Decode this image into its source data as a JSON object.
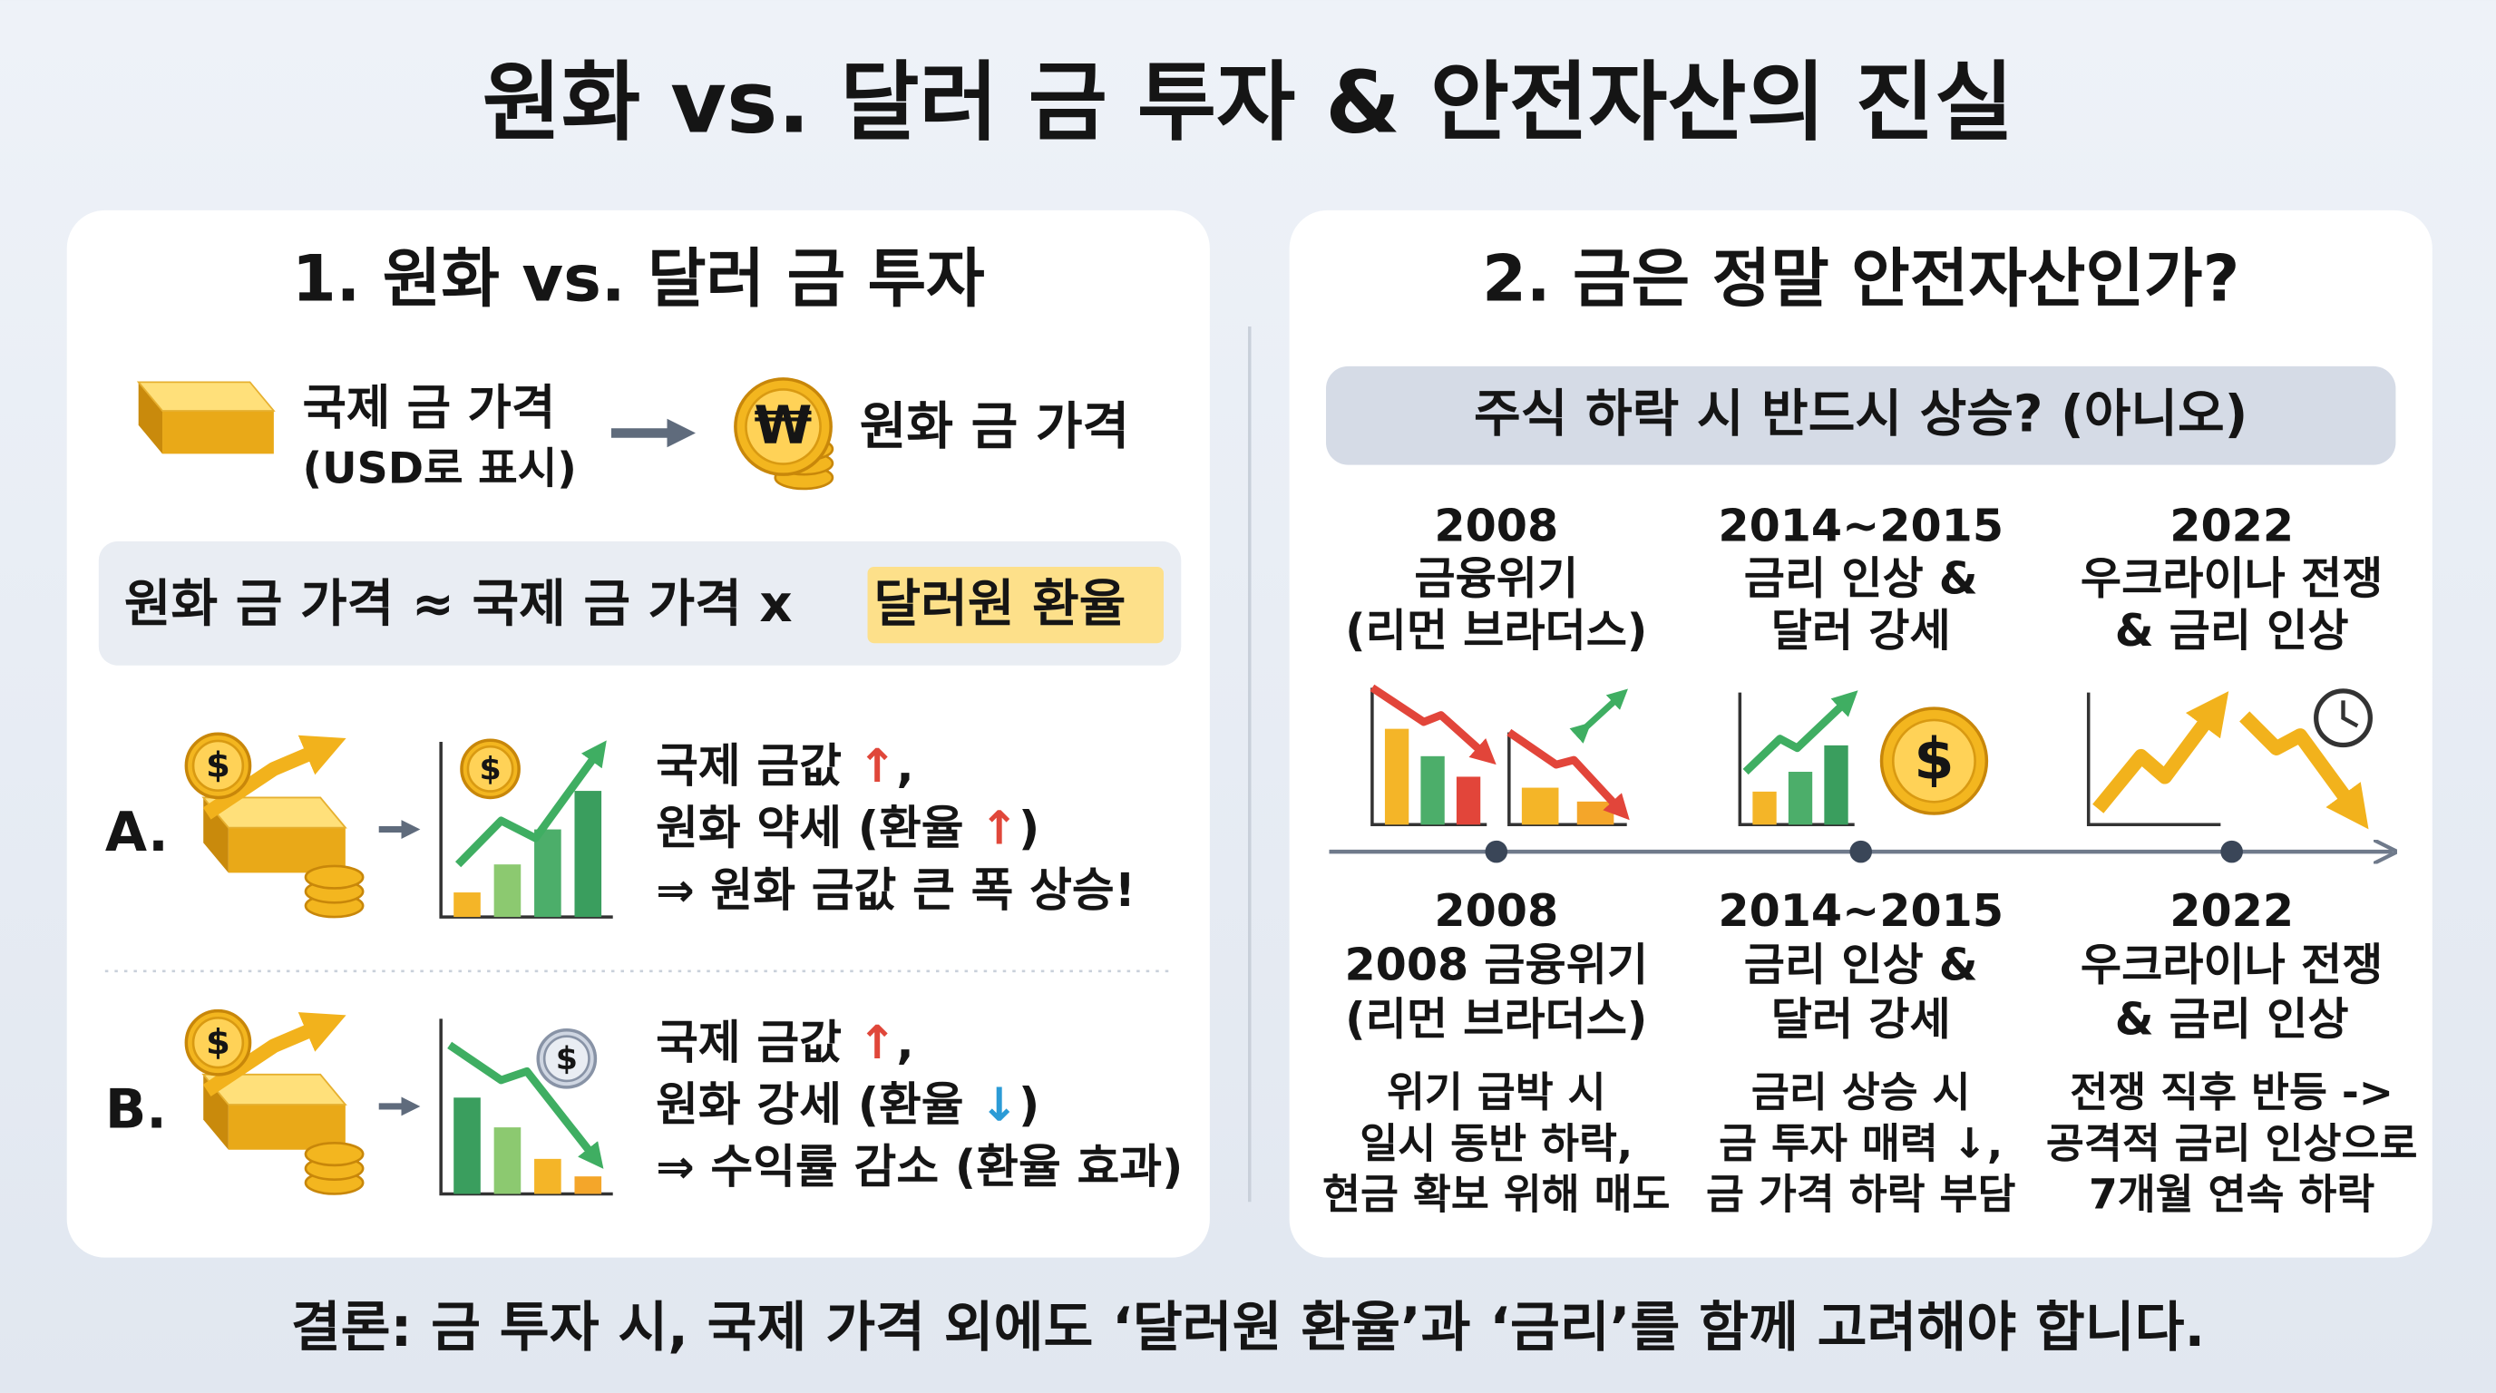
{
  "title": "원화 vs. 달러 금 투자 & 안전자산의 진실",
  "left": {
    "heading": "1. 원화 vs. 달러 금 투자",
    "flow": {
      "from": [
        "국제 금 가격",
        "(USD로 표시)"
      ],
      "to": "원화 금 가격"
    },
    "formula": {
      "text": "원화 금 가격 ≈ 국제 금 가격 x ",
      "highlight": "달러원 환율"
    },
    "cases": [
      {
        "letter": "A.",
        "lines": [
          [
            "국제 금값 ",
            "↑",
            ","
          ],
          [
            "원화 약세 (환율 ",
            "↑",
            ")"
          ],
          [
            "⇒ 원화 금값 큰 폭 상승!"
          ]
        ]
      },
      {
        "letter": "B.",
        "lines": [
          [
            "국제 금값 ",
            "↑",
            ","
          ],
          [
            "원화 강세 (환율 ",
            "↓",
            ")"
          ],
          [
            "⇒ 수익률 감소 (환율 효과)"
          ]
        ]
      }
    ]
  },
  "right": {
    "heading": "2. 금은 정말 안전자산인가?",
    "question": "주식 하락 시 반드시 상승? (아니오)",
    "events": [
      {
        "top": [
          "2008",
          "금융위기",
          "(리먼 브라더스)"
        ],
        "bottom": [
          "2008",
          "2008 금융위기",
          "(리먼 브라더스)"
        ],
        "description": [
          "위기 급박 시",
          "일시 동반 하락,",
          "현금 확보 위해 매도"
        ]
      },
      {
        "top": [
          "2014~2015",
          "금리 인상 &",
          "달러 강세"
        ],
        "bottom": [
          "2014~2015",
          "금리 인상 &",
          "달러 강세"
        ],
        "description": [
          "금리 상승 시",
          "금 투자 매력 ↓,",
          "금 가격 하락 부담"
        ]
      },
      {
        "top": [
          "2022",
          "우크라이나 전쟁",
          "& 금리 인상"
        ],
        "bottom": [
          "2022",
          "우크라이나 전쟁",
          "& 금리 인상"
        ],
        "description": [
          "전쟁 직후 반등 ->",
          "공격적 금리 인상으로",
          "7개월 연속 하락"
        ]
      }
    ]
  },
  "conclusion": "결론: 금 투자 시, 국제 가격 외에도 ‘달러원 환율’과 ‘금리’를 함께 고려해야 합니다."
}
